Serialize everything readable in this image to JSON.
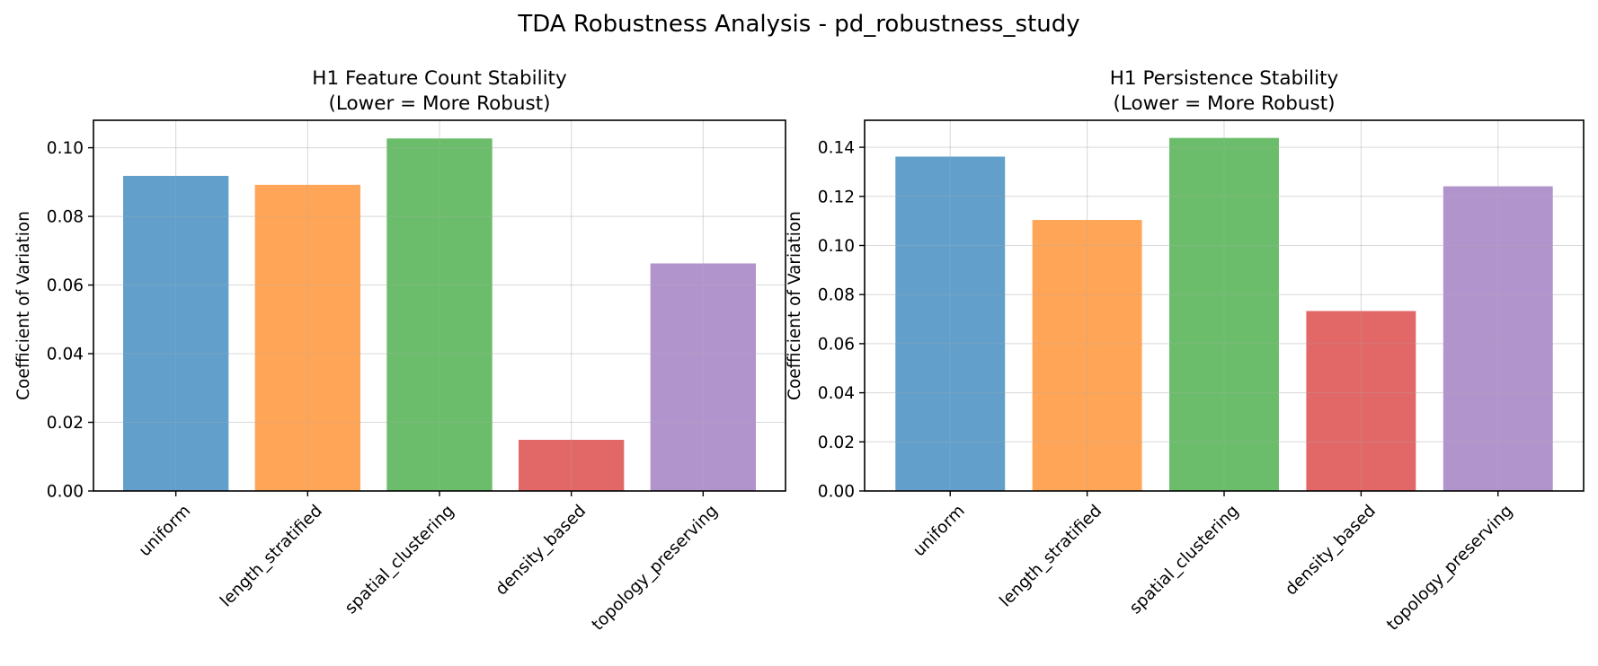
{
  "suptitle": "TDA Robustness Analysis - pd_robustness_study",
  "chart_data": [
    {
      "type": "bar",
      "title": "H1 Feature Count Stability",
      "subtitle": "(Lower = More Robust)",
      "xlabel": "",
      "ylabel": "Coefficient of Variation",
      "categories": [
        "uniform",
        "length_stratified",
        "spatial_clustering",
        "density_based",
        "topology_preserving"
      ],
      "values": [
        0.0918,
        0.0892,
        0.1027,
        0.0149,
        0.0663
      ],
      "colors": [
        "#62a0cb",
        "#fea557",
        "#6bbd6b",
        "#e26868",
        "#b294cd"
      ],
      "ylim": [
        0,
        0.108
      ],
      "yticks": [
        "0.00",
        "0.02",
        "0.04",
        "0.06",
        "0.08",
        "0.10"
      ],
      "grid": true,
      "legend": "none"
    },
    {
      "type": "bar",
      "title": "H1 Persistence Stability",
      "subtitle": "(Lower = More Robust)",
      "xlabel": "",
      "ylabel": "Coefficient of Variation",
      "categories": [
        "uniform",
        "length_stratified",
        "spatial_clustering",
        "density_based",
        "topology_preserving"
      ],
      "values": [
        0.1362,
        0.1104,
        0.1438,
        0.0733,
        0.1241
      ],
      "colors": [
        "#62a0cb",
        "#fea557",
        "#6bbd6b",
        "#e26868",
        "#b294cd"
      ],
      "ylim": [
        0,
        0.151
      ],
      "yticks": [
        "0.00",
        "0.02",
        "0.04",
        "0.06",
        "0.08",
        "0.10",
        "0.12",
        "0.14"
      ],
      "grid": true,
      "legend": "none"
    }
  ]
}
